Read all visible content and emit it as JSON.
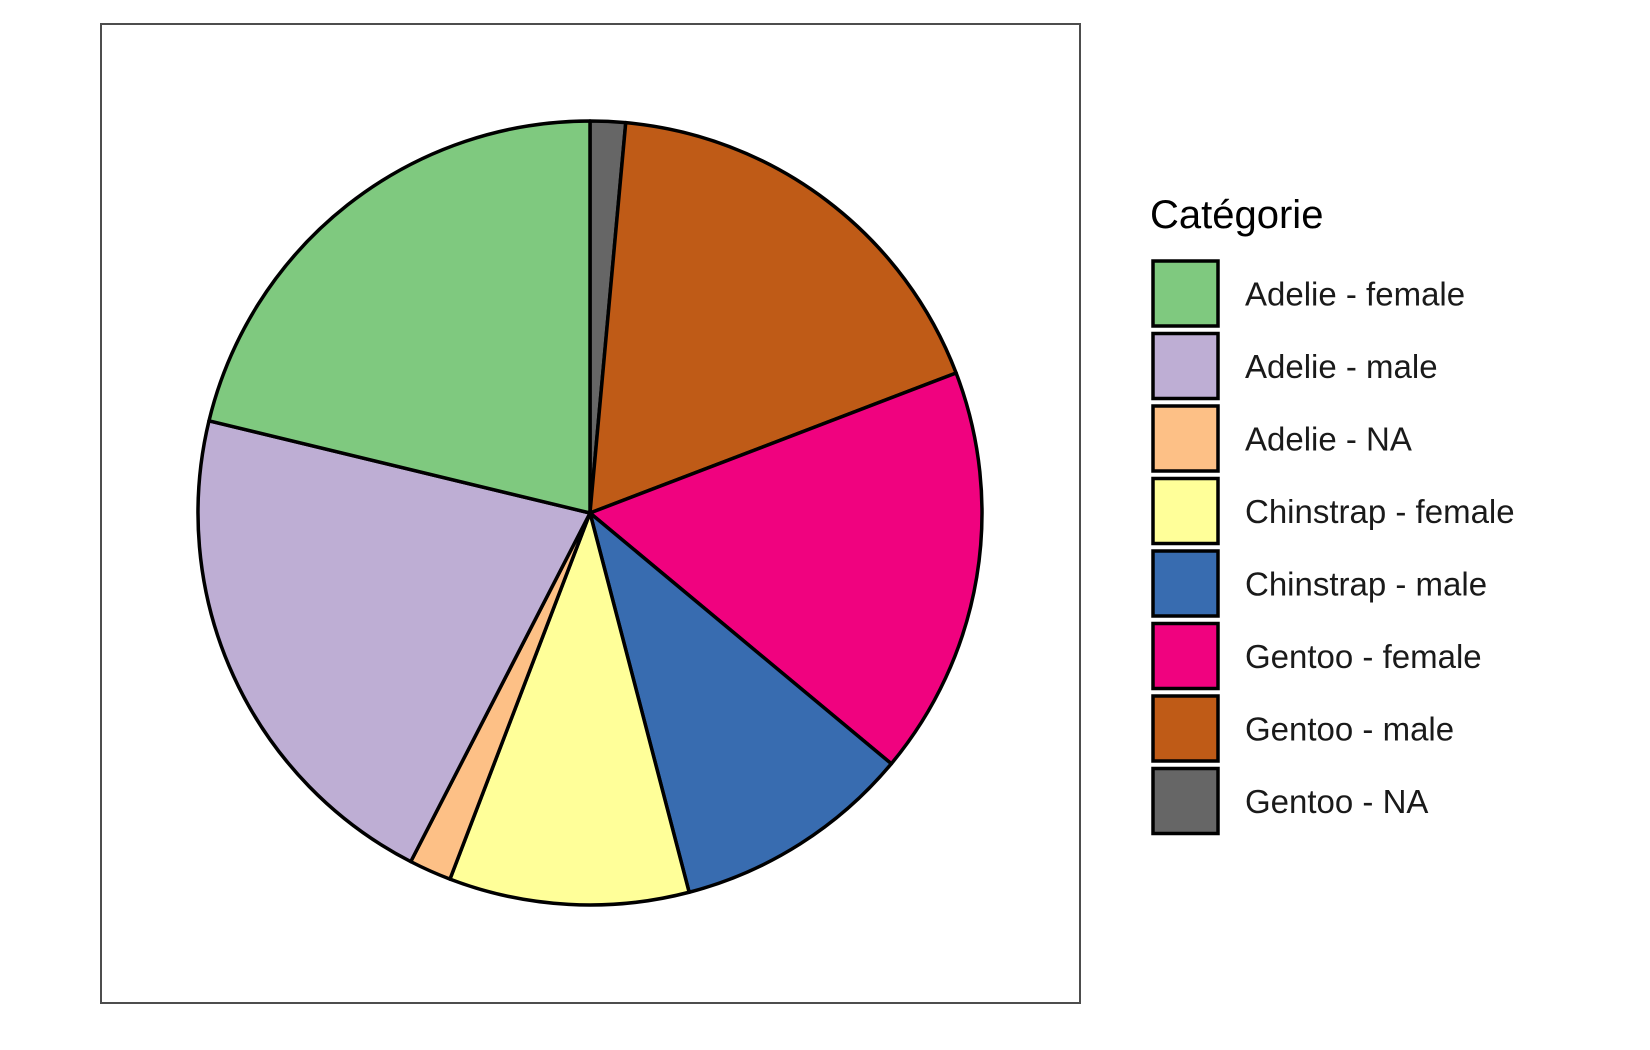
{
  "chart_data": {
    "type": "pie",
    "legend_title": "Catégorie",
    "legend_position": "right",
    "start_angle": "12 o'clock",
    "direction": "clockwise",
    "slices": [
      {
        "label": "Gentoo - NA",
        "value": 5,
        "color": "#666666"
      },
      {
        "label": "Gentoo - male",
        "value": 61,
        "color": "#BF5B17"
      },
      {
        "label": "Gentoo - female",
        "value": 58,
        "color": "#F0027F"
      },
      {
        "label": "Chinstrap - male",
        "value": 34,
        "color": "#386CB0"
      },
      {
        "label": "Chinstrap - female",
        "value": 34,
        "color": "#FFFF99"
      },
      {
        "label": "Adelie - NA",
        "value": 6,
        "color": "#FDC086"
      },
      {
        "label": "Adelie - male",
        "value": 73,
        "color": "#BEAED4"
      },
      {
        "label": "Adelie - female",
        "value": 73,
        "color": "#7FC97F"
      }
    ],
    "legend_items": [
      {
        "label": "Adelie - female",
        "color": "#7FC97F"
      },
      {
        "label": "Adelie - male",
        "color": "#BEAED4"
      },
      {
        "label": "Adelie - NA",
        "color": "#FDC086"
      },
      {
        "label": "Chinstrap - female",
        "color": "#FFFF99"
      },
      {
        "label": "Chinstrap - male",
        "color": "#386CB0"
      },
      {
        "label": "Gentoo - female",
        "color": "#F0027F"
      },
      {
        "label": "Gentoo - male",
        "color": "#BF5B17"
      },
      {
        "label": "Gentoo - NA",
        "color": "#666666"
      }
    ]
  }
}
